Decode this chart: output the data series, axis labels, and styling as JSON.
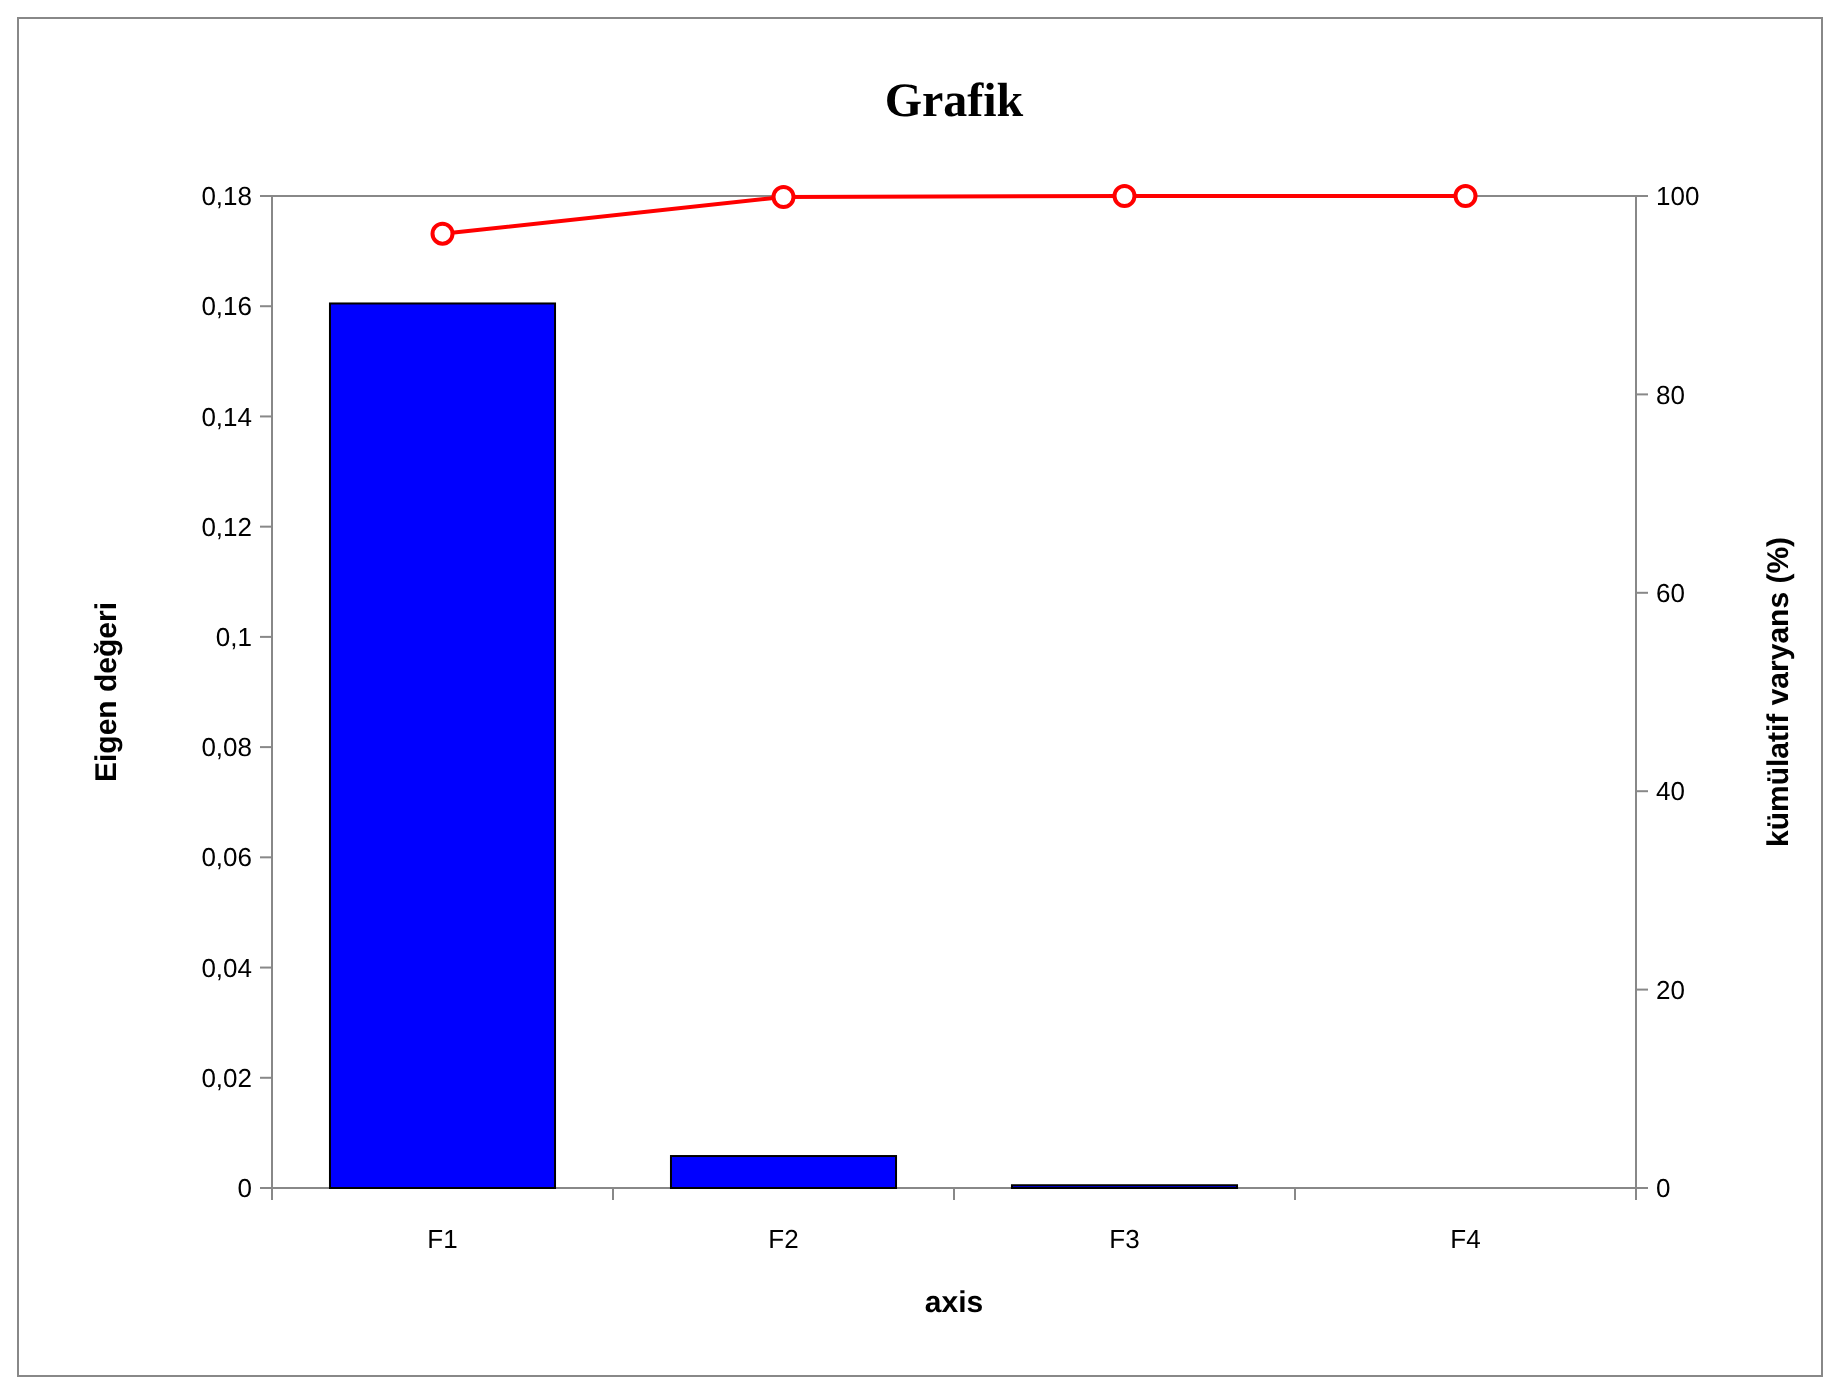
{
  "chart_data": {
    "type": "bar",
    "title": "Grafik",
    "xlabel": "axis",
    "ylabel": "Eigen değeri",
    "y2label": "kümülatif varyans (%)",
    "categories": [
      "F1",
      "F2",
      "F3",
      "F4"
    ],
    "series": [
      {
        "color": "#0000ff",
        "values": [
          0.1605,
          0.0058,
          0.0005,
          0
        ]
      },
      {
        "type": "line",
        "axis": "y2",
        "color": "#ff0000",
        "values": [
          96.2,
          99.9,
          100,
          100
        ]
      }
    ],
    "ylim": [
      0,
      0.18
    ],
    "yticks": [
      {
        "value": 0,
        "label": "0"
      },
      {
        "value": 0.02,
        "label": "0,02"
      },
      {
        "value": 0.04,
        "label": "0,04"
      },
      {
        "value": 0.06,
        "label": "0,06"
      },
      {
        "value": 0.08,
        "label": "0,08"
      },
      {
        "value": 0.1,
        "label": "0,1"
      },
      {
        "value": 0.12,
        "label": "0,12"
      },
      {
        "value": 0.14,
        "label": "0,14"
      },
      {
        "value": 0.16,
        "label": "0,16"
      },
      {
        "value": 0.18,
        "label": "0,18"
      }
    ],
    "y2lim": [
      0,
      100
    ],
    "y2ticks": [
      0,
      20,
      40,
      60,
      80,
      100
    ],
    "grid": false,
    "marker": "circle",
    "line_style": "solid"
  }
}
